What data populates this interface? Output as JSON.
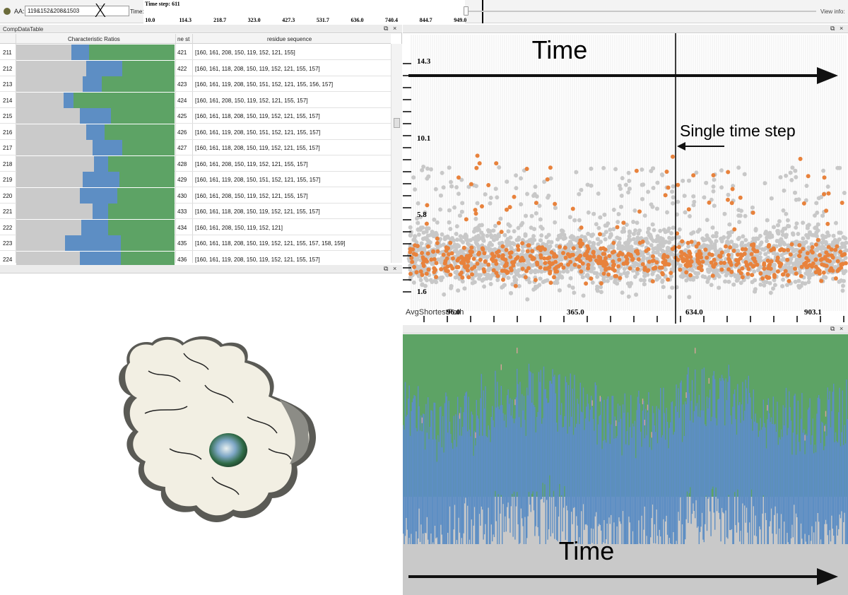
{
  "toolbar": {
    "aa_label": "AA:",
    "aa_value": "119&152&208&1503",
    "time_label": "Time:",
    "time_step": "Time step: 611",
    "timeline_ticks": [
      "10.0",
      "114.3",
      "218.7",
      "323.0",
      "427.3",
      "531.7",
      "636.0",
      "740.4",
      "844.7",
      "949.0"
    ],
    "view_info": "View info:"
  },
  "table": {
    "title": "CompDataTable",
    "headers": [
      "Characteristic Ratios",
      "ne st",
      "residue sequence"
    ],
    "rows": [
      {
        "id": "211",
        "blue": 0.11,
        "green": 0.54,
        "cid": "421",
        "seq": "[160, 161, 208, 150, 119, 152, 121, 155]"
      },
      {
        "id": "212",
        "blue": 0.23,
        "green": 0.33,
        "cid": "422",
        "seq": "[160, 161, 118, 208, 150, 119, 152, 121, 155, 157]"
      },
      {
        "id": "213",
        "blue": 0.12,
        "green": 0.46,
        "cid": "423",
        "seq": "[160, 161, 119, 208, 150, 151, 152, 121, 155, 156, 157]"
      },
      {
        "id": "214",
        "blue": 0.06,
        "green": 0.64,
        "cid": "424",
        "seq": "[160, 161, 208, 150, 119, 152, 121, 155, 157]"
      },
      {
        "id": "215",
        "blue": 0.2,
        "green": 0.4,
        "cid": "425",
        "seq": "[160, 161, 118, 208, 150, 119, 152, 121, 155, 157]"
      },
      {
        "id": "216",
        "blue": 0.12,
        "green": 0.44,
        "cid": "426",
        "seq": "[160, 161, 119, 208, 150, 151, 152, 121, 155, 157]"
      },
      {
        "id": "217",
        "blue": 0.19,
        "green": 0.33,
        "cid": "427",
        "seq": "[160, 161, 118, 208, 150, 119, 152, 121, 155, 157]"
      },
      {
        "id": "218",
        "blue": 0.09,
        "green": 0.42,
        "cid": "428",
        "seq": "[160, 161, 208, 150, 119, 152, 121, 155, 157]"
      },
      {
        "id": "219",
        "blue": 0.23,
        "green": 0.35,
        "cid": "429",
        "seq": "[160, 161, 119, 208, 150, 151, 152, 121, 155, 157]"
      },
      {
        "id": "220",
        "blue": 0.24,
        "green": 0.36,
        "cid": "430",
        "seq": "[160, 161, 208, 150, 119, 152, 121, 155, 157]"
      },
      {
        "id": "221",
        "blue": 0.1,
        "green": 0.42,
        "cid": "433",
        "seq": "[160, 161, 118, 208, 150, 119, 152, 121, 155, 157]"
      },
      {
        "id": "222",
        "blue": 0.17,
        "green": 0.42,
        "cid": "434",
        "seq": "[160, 161, 208, 150, 119, 152, 121]"
      },
      {
        "id": "223",
        "blue": 0.35,
        "green": 0.34,
        "cid": "435",
        "seq": "[160, 161, 118, 208, 150, 119, 152, 121, 155, 157, 158, 159]"
      },
      {
        "id": "224",
        "blue": 0.26,
        "green": 0.34,
        "cid": "436",
        "seq": "[160, 161, 119, 208, 150, 119, 152, 121, 155, 157]"
      }
    ]
  },
  "scatter": {
    "yticks": [
      "14.3",
      "10.1",
      "5.8",
      "1.6"
    ],
    "xticks": [
      "96.0",
      "365.0",
      "634.0",
      "903.1"
    ],
    "axis_label": "AvgShortestPath",
    "annotation_time": "Time",
    "annotation_step": "Single time step",
    "colors": {
      "grey": "#c8c8c8",
      "orange": "#e8823c"
    }
  },
  "stack": {
    "annotation_time": "Time",
    "colors": {
      "green": "#5da365",
      "blue": "#5d8ec4",
      "grey": "#c9c9c9",
      "pink": "#d9a29a"
    }
  },
  "buttons": {
    "float": "⧉",
    "close": "×"
  }
}
